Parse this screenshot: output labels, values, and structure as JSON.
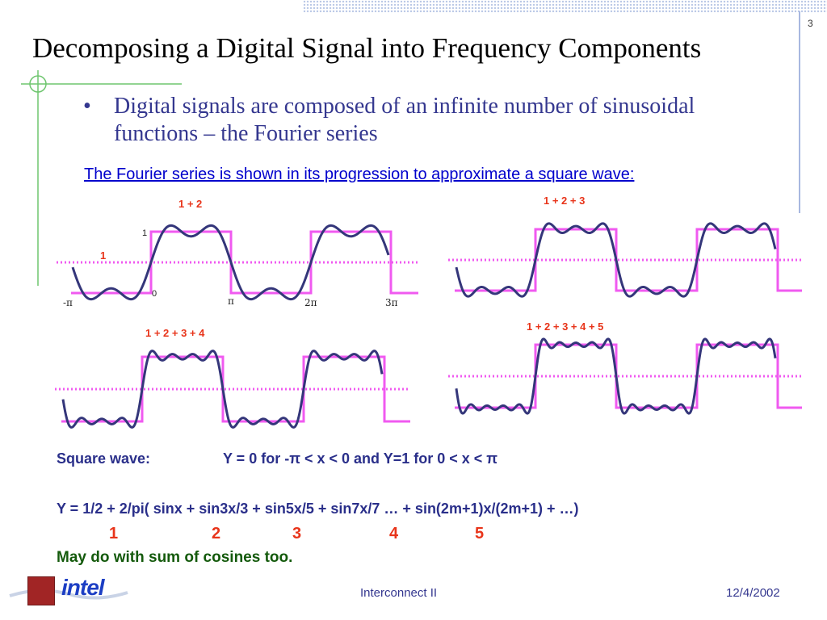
{
  "slide_number": "3",
  "title": "Decomposing a Digital Signal into Frequency Components",
  "bullet": {
    "symbol": "•",
    "text": "Digital signals are composed of an infinite number of sinusoidal functions – the Fourier series"
  },
  "subtitle": "The Fourier series is shown in its progression to approximate a square wave:",
  "plots": [
    {
      "label": "1 + 2",
      "terms": 2
    },
    {
      "label": "1 + 2 + 3",
      "terms": 3
    },
    {
      "label": "1 + 2 + 3 + 4",
      "terms": 4
    },
    {
      "label": "1 + 2 + 3 + 4 + 5",
      "terms": 5
    }
  ],
  "plot1_annotations": {
    "one_label": "1",
    "y_top": "1",
    "y_zero": "0",
    "x_ticks": [
      "-π",
      "π",
      "2π",
      "3π"
    ]
  },
  "formulas": {
    "square_wave_label": "Square wave:",
    "square_wave_def": "Y = 0 for -π < x < 0 and Y=1 for 0 < x < π",
    "series": "Y = 1/2 + 2/pi( sinx + sin3x/3 + sin5x/5 + sin7x/7 … + sin(2m+1)x/(2m+1) + …)",
    "term_numbers": [
      "1",
      "2",
      "3",
      "4",
      "5"
    ]
  },
  "note": "May do with sum of cosines too.",
  "footer": {
    "center": "Interconnect II",
    "date": "12/4/2002"
  },
  "logo": {
    "text": "intel"
  },
  "colors": {
    "square_wave": "#f05af0",
    "sum_wave": "#34367a",
    "dotted_line": "#f05af0",
    "label_red": "#e8341a",
    "text_blue": "#34378f",
    "link_blue": "#0000cc",
    "note_green": "#145a0c"
  }
}
